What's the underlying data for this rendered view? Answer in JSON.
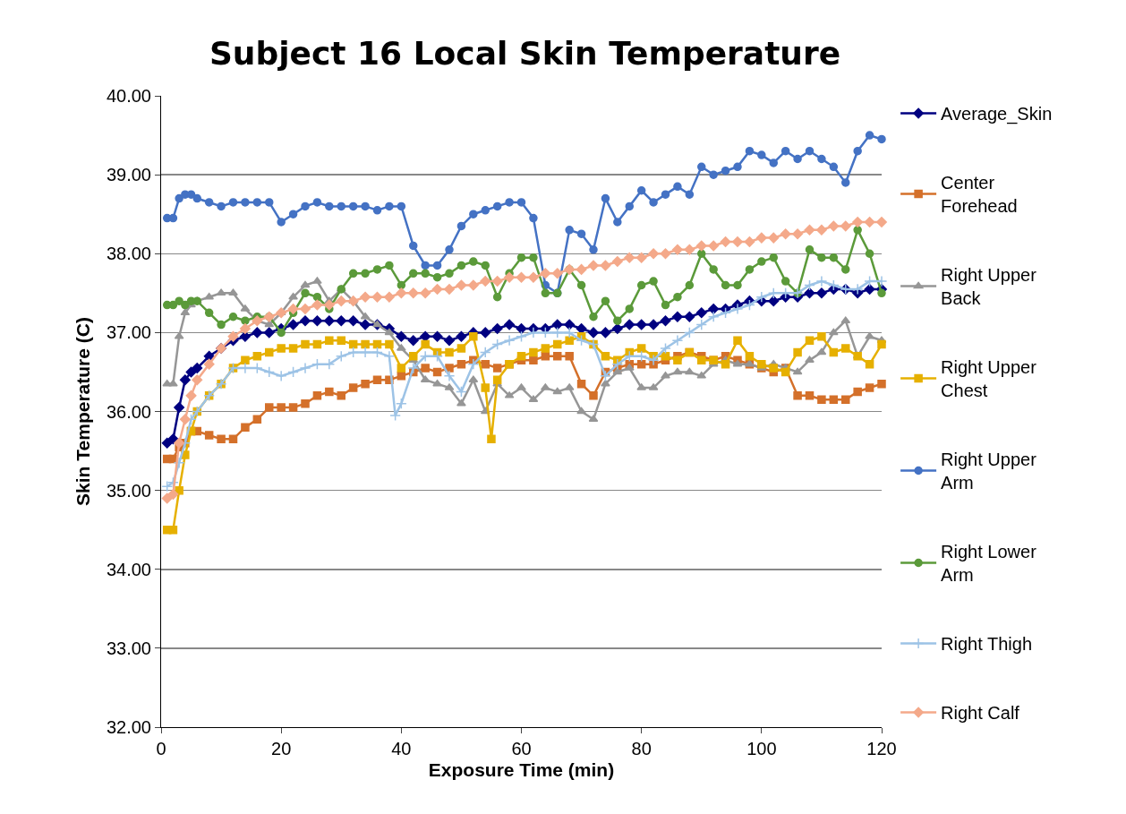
{
  "chart_data": {
    "type": "line",
    "title": "Subject 16 Local Skin Temperature",
    "xlabel": "Exposure Time (min)",
    "ylabel": "Skin Temperature (C)",
    "x": [
      1,
      2,
      3,
      4,
      5,
      6,
      8,
      10,
      12,
      14,
      16,
      18,
      20,
      22,
      24,
      26,
      28,
      30,
      32,
      34,
      36,
      38,
      40,
      42,
      44,
      46,
      48,
      50,
      52,
      54,
      56,
      58,
      60,
      62,
      64,
      66,
      68,
      70,
      72,
      74,
      76,
      78,
      80,
      82,
      84,
      86,
      88,
      90,
      92,
      94,
      96,
      98,
      100,
      102,
      104,
      106,
      108,
      110,
      112,
      114,
      116,
      118,
      120
    ],
    "xlim": [
      0,
      120
    ],
    "xticks": [
      0,
      20,
      40,
      60,
      80,
      100,
      120
    ],
    "ylim": [
      32,
      40
    ],
    "yticks": [
      {
        "value": 32,
        "label": "32.00"
      },
      {
        "value": 33,
        "label": "33.00"
      },
      {
        "value": 34,
        "label": "34.00"
      },
      {
        "value": 35,
        "label": "35.00"
      },
      {
        "value": 36,
        "label": "36.00"
      },
      {
        "value": 37,
        "label": "37.00"
      },
      {
        "value": 38,
        "label": "38.00"
      },
      {
        "value": 39,
        "label": "39.00"
      },
      {
        "value": 40,
        "label": "40.00"
      }
    ],
    "grid": "y",
    "legend": "right",
    "line_style": "solid",
    "series": [
      {
        "name": "Average_Skin",
        "color": "#000080",
        "marker": "diamond",
        "values": [
          35.6,
          35.65,
          36.05,
          36.4,
          36.5,
          36.55,
          36.7,
          36.8,
          36.9,
          36.95,
          37.0,
          37.0,
          37.05,
          37.1,
          37.15,
          37.15,
          37.15,
          37.15,
          37.15,
          37.1,
          37.1,
          37.05,
          36.95,
          36.9,
          36.95,
          36.95,
          36.9,
          36.95,
          37.0,
          37.0,
          37.05,
          37.1,
          37.05,
          37.05,
          37.05,
          37.1,
          37.1,
          37.05,
          37.0,
          37.0,
          37.05,
          37.1,
          37.1,
          37.1,
          37.15,
          37.2,
          37.2,
          37.25,
          37.3,
          37.3,
          37.35,
          37.4,
          37.4,
          37.4,
          37.45,
          37.45,
          37.5,
          37.5,
          37.55,
          37.55,
          37.5,
          37.55,
          37.55
        ]
      },
      {
        "name": "Center Forehead",
        "color": "#d4702a",
        "marker": "square",
        "values": [
          35.4,
          35.4,
          35.55,
          35.6,
          35.75,
          35.75,
          35.7,
          35.65,
          35.65,
          35.8,
          35.9,
          36.05,
          36.05,
          36.05,
          36.1,
          36.2,
          36.25,
          36.2,
          36.3,
          36.35,
          36.4,
          36.4,
          36.45,
          36.5,
          36.55,
          36.5,
          36.55,
          36.6,
          36.65,
          36.6,
          36.55,
          36.6,
          36.65,
          36.65,
          36.7,
          36.7,
          36.7,
          36.35,
          36.2,
          36.5,
          36.55,
          36.6,
          36.6,
          36.6,
          36.65,
          36.7,
          36.75,
          36.7,
          36.65,
          36.7,
          36.65,
          36.6,
          36.55,
          36.5,
          36.55,
          36.2,
          36.2,
          36.15,
          36.15,
          36.15,
          36.25,
          36.3,
          36.35
        ]
      },
      {
        "name": "Right Upper Back",
        "color": "#969696",
        "marker": "triangle",
        "values": [
          36.35,
          36.35,
          36.95,
          37.25,
          37.35,
          37.4,
          37.45,
          37.5,
          37.5,
          37.3,
          37.15,
          37.1,
          37.25,
          37.45,
          37.6,
          37.65,
          37.4,
          37.55,
          37.4,
          37.2,
          37.1,
          37.0,
          36.8,
          36.65,
          36.4,
          36.35,
          36.3,
          36.1,
          36.4,
          36.0,
          36.35,
          36.2,
          36.3,
          36.15,
          36.3,
          36.25,
          36.3,
          36.0,
          35.9,
          36.35,
          36.5,
          36.55,
          36.3,
          36.3,
          36.45,
          36.5,
          36.5,
          36.45,
          36.6,
          36.65,
          36.6,
          36.6,
          36.55,
          36.6,
          36.55,
          36.5,
          36.65,
          36.75,
          37.0,
          37.15,
          36.7,
          36.95,
          36.9
        ]
      },
      {
        "name": "Right Upper Chest",
        "color": "#e6b000",
        "marker": "square",
        "x": [
          1,
          2,
          3,
          4,
          5,
          6,
          8,
          10,
          12,
          14,
          16,
          18,
          20,
          22,
          24,
          26,
          28,
          30,
          32,
          34,
          36,
          38,
          40,
          42,
          44,
          46,
          48,
          50,
          52,
          54,
          55,
          56,
          58,
          60,
          62,
          64,
          66,
          68,
          70,
          72,
          74,
          76,
          78,
          80,
          82,
          84,
          86,
          88,
          90,
          92,
          94,
          96,
          98,
          100,
          102,
          104,
          106,
          108,
          110,
          112,
          114,
          116,
          118,
          120
        ],
        "values": [
          34.5,
          34.5,
          35.0,
          35.45,
          35.75,
          36.0,
          36.2,
          36.35,
          36.55,
          36.65,
          36.7,
          36.75,
          36.8,
          36.8,
          36.85,
          36.85,
          36.9,
          36.9,
          36.85,
          36.85,
          36.85,
          36.85,
          36.55,
          36.7,
          36.85,
          36.75,
          36.75,
          36.8,
          36.95,
          36.3,
          35.65,
          36.4,
          36.6,
          36.7,
          36.75,
          36.8,
          36.85,
          36.9,
          36.95,
          36.85,
          36.7,
          36.65,
          36.75,
          36.8,
          36.7,
          36.7,
          36.65,
          36.75,
          36.65,
          36.65,
          36.6,
          36.9,
          36.7,
          36.6,
          36.55,
          36.5,
          36.75,
          36.9,
          36.95,
          36.75,
          36.8,
          36.7,
          36.6,
          36.85
        ]
      },
      {
        "name": "Right Upper Arm",
        "color": "#4472c4",
        "marker": "circle",
        "values": [
          38.45,
          38.45,
          38.7,
          38.75,
          38.75,
          38.7,
          38.65,
          38.6,
          38.65,
          38.65,
          38.65,
          38.65,
          38.4,
          38.5,
          38.6,
          38.65,
          38.6,
          38.6,
          38.6,
          38.6,
          38.55,
          38.6,
          38.6,
          38.1,
          37.85,
          37.85,
          38.05,
          38.35,
          38.5,
          38.55,
          38.6,
          38.65,
          38.65,
          38.45,
          37.6,
          37.5,
          38.3,
          38.25,
          38.05,
          38.7,
          38.4,
          38.6,
          38.8,
          38.65,
          38.75,
          38.85,
          38.75,
          39.1,
          39.0,
          39.05,
          39.1,
          39.3,
          39.25,
          39.15,
          39.3,
          39.2,
          39.3,
          39.2,
          39.1,
          38.9,
          39.3,
          39.5,
          39.45
        ]
      },
      {
        "name": "Right Lower Arm",
        "color": "#5b9a3a",
        "marker": "circle",
        "values": [
          37.35,
          37.35,
          37.4,
          37.35,
          37.4,
          37.4,
          37.25,
          37.1,
          37.2,
          37.15,
          37.2,
          37.2,
          37.0,
          37.25,
          37.5,
          37.45,
          37.3,
          37.55,
          37.75,
          37.75,
          37.8,
          37.85,
          37.6,
          37.75,
          37.75,
          37.7,
          37.75,
          37.85,
          37.9,
          37.85,
          37.45,
          37.75,
          37.95,
          37.95,
          37.5,
          37.5,
          37.8,
          37.6,
          37.2,
          37.4,
          37.15,
          37.3,
          37.6,
          37.65,
          37.35,
          37.45,
          37.6,
          38.0,
          37.8,
          37.6,
          37.6,
          37.8,
          37.9,
          37.95,
          37.65,
          37.5,
          38.05,
          37.95,
          37.95,
          37.8,
          38.3,
          38.0,
          37.5
        ]
      },
      {
        "name": "Right Thigh",
        "color": "#9dc3e6",
        "marker": "cross",
        "x": [
          1,
          2,
          3,
          4,
          5,
          6,
          8,
          10,
          12,
          14,
          16,
          18,
          20,
          22,
          24,
          26,
          28,
          30,
          32,
          34,
          36,
          38,
          39,
          40,
          42,
          44,
          46,
          48,
          50,
          52,
          54,
          56,
          58,
          60,
          62,
          64,
          66,
          68,
          70,
          72,
          74,
          76,
          78,
          80,
          82,
          84,
          86,
          88,
          90,
          92,
          94,
          96,
          98,
          100,
          102,
          104,
          106,
          108,
          110,
          112,
          114,
          116,
          118,
          120
        ],
        "values": [
          35.05,
          35.1,
          35.35,
          35.6,
          35.9,
          36.0,
          36.2,
          36.35,
          36.55,
          36.55,
          36.55,
          36.5,
          36.45,
          36.5,
          36.55,
          36.6,
          36.6,
          36.7,
          36.75,
          36.75,
          36.75,
          36.7,
          35.95,
          36.1,
          36.55,
          36.7,
          36.7,
          36.45,
          36.25,
          36.6,
          36.75,
          36.85,
          36.9,
          36.95,
          37.0,
          37.0,
          37.0,
          37.0,
          36.9,
          36.85,
          36.45,
          36.6,
          36.7,
          36.7,
          36.65,
          36.8,
          36.9,
          37.0,
          37.1,
          37.2,
          37.25,
          37.3,
          37.35,
          37.45,
          37.5,
          37.5,
          37.5,
          37.6,
          37.65,
          37.6,
          37.55,
          37.55,
          37.65,
          37.65
        ]
      },
      {
        "name": "Right Calf",
        "color": "#f4a98a",
        "marker": "diamond",
        "values": [
          34.9,
          34.95,
          35.6,
          35.9,
          36.2,
          36.4,
          36.6,
          36.8,
          36.95,
          37.05,
          37.15,
          37.2,
          37.25,
          37.3,
          37.3,
          37.35,
          37.35,
          37.4,
          37.4,
          37.45,
          37.45,
          37.45,
          37.5,
          37.5,
          37.5,
          37.55,
          37.55,
          37.6,
          37.6,
          37.65,
          37.65,
          37.7,
          37.7,
          37.7,
          37.75,
          37.75,
          37.8,
          37.8,
          37.85,
          37.85,
          37.9,
          37.95,
          37.95,
          38.0,
          38.0,
          38.05,
          38.05,
          38.1,
          38.1,
          38.15,
          38.15,
          38.15,
          38.2,
          38.2,
          38.25,
          38.25,
          38.3,
          38.3,
          38.35,
          38.35,
          38.4,
          38.4,
          38.4
        ]
      }
    ]
  }
}
